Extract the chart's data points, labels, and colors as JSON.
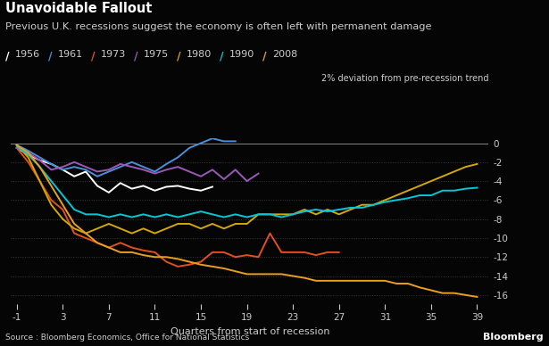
{
  "title": "Unavoidable Fallout",
  "subtitle": "Previous U.K. recessions suggest the economy is often left with permanent damage",
  "ylabel_note": "2% deviation from pre-recession trend",
  "xlabel": "Quarters from start of recession",
  "source": "Source : Bloomberg Economics, Office for National Statistics",
  "background_color": "#050505",
  "text_color": "#cccccc",
  "grid_color": "#3a3a3a",
  "ylim": [
    -17,
    0.5
  ],
  "xlim": [
    -1.5,
    40
  ],
  "yticks": [
    0,
    -2,
    -4,
    -6,
    -8,
    -10,
    -12,
    -14,
    -16
  ],
  "xticks": [
    -1,
    3,
    7,
    11,
    15,
    19,
    23,
    27,
    31,
    35,
    39
  ],
  "series": {
    "1956": {
      "color": "#ffffff",
      "x": [
        -1,
        0,
        1,
        2,
        3,
        4,
        5,
        6,
        7,
        8,
        9,
        10,
        11,
        12,
        13,
        14,
        15,
        16
      ],
      "y": [
        -0.5,
        -1.2,
        -1.8,
        -2.2,
        -2.8,
        -3.5,
        -3.0,
        -4.5,
        -5.2,
        -4.2,
        -4.8,
        -4.5,
        -5.0,
        -4.6,
        -4.5,
        -4.8,
        -5.0,
        -4.6
      ]
    },
    "1961": {
      "color": "#4a90d9",
      "x": [
        -1,
        0,
        1,
        2,
        3,
        4,
        5,
        6,
        7,
        8,
        9,
        10,
        11,
        12,
        13,
        14,
        15,
        16,
        17,
        18
      ],
      "y": [
        -0.2,
        -0.8,
        -1.5,
        -2.2,
        -2.8,
        -2.5,
        -2.8,
        -3.5,
        -3.0,
        -2.5,
        -2.0,
        -2.5,
        -3.0,
        -2.2,
        -1.5,
        -0.5,
        0.0,
        0.5,
        0.2,
        0.2
      ]
    },
    "1973": {
      "color": "#e05020",
      "x": [
        -1,
        0,
        1,
        2,
        3,
        4,
        5,
        6,
        7,
        8,
        9,
        10,
        11,
        12,
        13,
        14,
        15,
        16,
        17,
        18,
        19,
        20,
        21,
        22,
        23,
        24,
        25,
        26,
        27
      ],
      "y": [
        -0.5,
        -2.0,
        -4.0,
        -6.0,
        -7.0,
        -9.5,
        -10.0,
        -10.5,
        -11.0,
        -10.5,
        -11.0,
        -11.3,
        -11.5,
        -12.5,
        -13.0,
        -12.8,
        -12.5,
        -11.5,
        -11.5,
        -12.0,
        -11.8,
        -12.0,
        -9.5,
        -11.5,
        -11.5,
        -11.5,
        -11.8,
        -11.5,
        -11.5
      ]
    },
    "1975": {
      "color": "#9b59b6",
      "x": [
        -1,
        0,
        1,
        2,
        3,
        4,
        5,
        6,
        7,
        8,
        9,
        10,
        11,
        12,
        13,
        14,
        15,
        16,
        17,
        18,
        19,
        20
      ],
      "y": [
        -0.5,
        -1.0,
        -1.8,
        -2.8,
        -2.5,
        -2.0,
        -2.5,
        -3.0,
        -2.8,
        -2.2,
        -2.5,
        -2.8,
        -3.2,
        -2.8,
        -2.5,
        -3.0,
        -3.5,
        -2.8,
        -3.8,
        -2.8,
        -4.0,
        -3.2
      ]
    },
    "1980": {
      "color": "#d4a800",
      "x": [
        -1,
        0,
        1,
        2,
        3,
        4,
        5,
        6,
        7,
        8,
        9,
        10,
        11,
        12,
        13,
        14,
        15,
        16,
        17,
        18,
        19,
        20,
        21,
        22,
        23,
        24,
        25,
        26,
        27,
        28,
        29,
        30,
        31,
        32,
        33,
        34,
        35,
        36,
        37,
        38,
        39
      ],
      "y": [
        -0.2,
        -1.5,
        -4.0,
        -6.5,
        -8.0,
        -9.0,
        -9.5,
        -9.0,
        -8.5,
        -9.0,
        -9.5,
        -9.0,
        -9.5,
        -9.0,
        -8.5,
        -8.5,
        -9.0,
        -8.5,
        -9.0,
        -8.5,
        -8.5,
        -7.5,
        -7.5,
        -7.5,
        -7.5,
        -7.0,
        -7.5,
        -7.0,
        -7.5,
        -7.0,
        -6.5,
        -6.5,
        -6.0,
        -5.5,
        -5.0,
        -4.5,
        -4.0,
        -3.5,
        -3.0,
        -2.5,
        -2.2
      ]
    },
    "1990": {
      "color": "#00c8d4",
      "x": [
        -1,
        0,
        1,
        2,
        3,
        4,
        5,
        6,
        7,
        8,
        9,
        10,
        11,
        12,
        13,
        14,
        15,
        16,
        17,
        18,
        19,
        20,
        21,
        22,
        23,
        24,
        25,
        26,
        27,
        28,
        29,
        30,
        31,
        32,
        33,
        34,
        35,
        36,
        37,
        38,
        39
      ],
      "y": [
        -0.3,
        -1.2,
        -2.5,
        -4.0,
        -5.5,
        -7.0,
        -7.5,
        -7.5,
        -7.8,
        -7.5,
        -7.8,
        -7.5,
        -7.8,
        -7.5,
        -7.8,
        -7.5,
        -7.2,
        -7.5,
        -7.8,
        -7.5,
        -7.8,
        -7.5,
        -7.5,
        -7.8,
        -7.5,
        -7.2,
        -7.0,
        -7.2,
        -7.0,
        -6.8,
        -6.8,
        -6.5,
        -6.2,
        -6.0,
        -5.8,
        -5.5,
        -5.5,
        -5.0,
        -5.0,
        -4.8,
        -4.7
      ]
    },
    "2008": {
      "color": "#e8a020",
      "x": [
        -1,
        0,
        1,
        2,
        3,
        4,
        5,
        6,
        7,
        8,
        9,
        10,
        11,
        12,
        13,
        14,
        15,
        16,
        17,
        18,
        19,
        20,
        21,
        22,
        23,
        24,
        25,
        26,
        27,
        28,
        29,
        30,
        31,
        32,
        33,
        34,
        35,
        36,
        37,
        38,
        39
      ],
      "y": [
        -0.2,
        -1.0,
        -2.5,
        -4.5,
        -6.5,
        -8.5,
        -9.5,
        -10.5,
        -11.0,
        -11.5,
        -11.5,
        -11.8,
        -12.0,
        -12.0,
        -12.2,
        -12.5,
        -12.8,
        -13.0,
        -13.2,
        -13.5,
        -13.8,
        -13.8,
        -13.8,
        -13.8,
        -14.0,
        -14.2,
        -14.5,
        -14.5,
        -14.5,
        -14.5,
        -14.5,
        -14.5,
        -14.5,
        -14.8,
        -14.8,
        -15.2,
        -15.5,
        -15.8,
        -15.8,
        -16.0,
        -16.2
      ]
    }
  },
  "legend_order": [
    "1956",
    "1961",
    "1973",
    "1975",
    "1980",
    "1990",
    "2008"
  ]
}
